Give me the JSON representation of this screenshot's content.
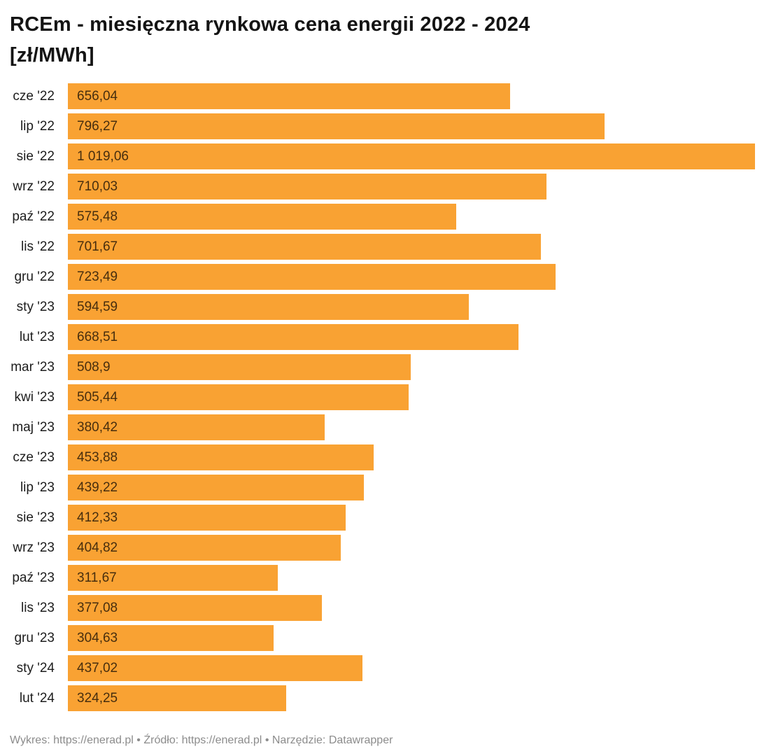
{
  "title": "RCEm - miesięczna rynkowa cena energii 2022 - 2024",
  "title_unit": "[zł/MWh]",
  "colors": {
    "bar": "#F9A233",
    "value_text": "rgba(0,0,0,0.72)",
    "category_text": "#1d1d1d",
    "title_text": "#141414",
    "footer_text": "#8c8c8c",
    "background": "#ffffff"
  },
  "chart_data": {
    "type": "bar",
    "orientation": "horizontal",
    "title": "RCEm - miesięczna rynkowa cena energii 2022 - 2024 [zł/MWh]",
    "xlabel": "",
    "ylabel": "",
    "xlim": [
      0,
      1019.06
    ],
    "grid": false,
    "legend": false,
    "value_label_position": "inside-start",
    "categories": [
      "cze '22",
      "lip '22",
      "sie '22",
      "wrz '22",
      "paź '22",
      "lis '22",
      "gru '22",
      "sty '23",
      "lut '23",
      "mar '23",
      "kwi '23",
      "maj '23",
      "cze '23",
      "lip '23",
      "sie '23",
      "wrz '23",
      "paź '23",
      "lis '23",
      "gru '23",
      "sty '24",
      "lut '24"
    ],
    "values": [
      656.04,
      796.27,
      1019.06,
      710.03,
      575.48,
      701.67,
      723.49,
      594.59,
      668.51,
      508.9,
      505.44,
      380.42,
      453.88,
      439.22,
      412.33,
      404.82,
      311.67,
      377.08,
      304.63,
      437.02,
      324.25
    ],
    "value_labels": [
      "656,04",
      "796,27",
      "1 019,06",
      "710,03",
      "575,48",
      "701,67",
      "723,49",
      "594,59",
      "668,51",
      "508,9",
      "505,44",
      "380,42",
      "453,88",
      "439,22",
      "412,33",
      "404,82",
      "311,67",
      "377,08",
      "304,63",
      "437,02",
      "324,25"
    ]
  },
  "footer": {
    "chart_label": "Wykres:",
    "chart_link": "https://enerad.pl",
    "separator": "•",
    "source_label": "Źródło:",
    "source_link": "https://enerad.pl",
    "tool_label": "Narzędzie:",
    "tool_name": "Datawrapper"
  }
}
